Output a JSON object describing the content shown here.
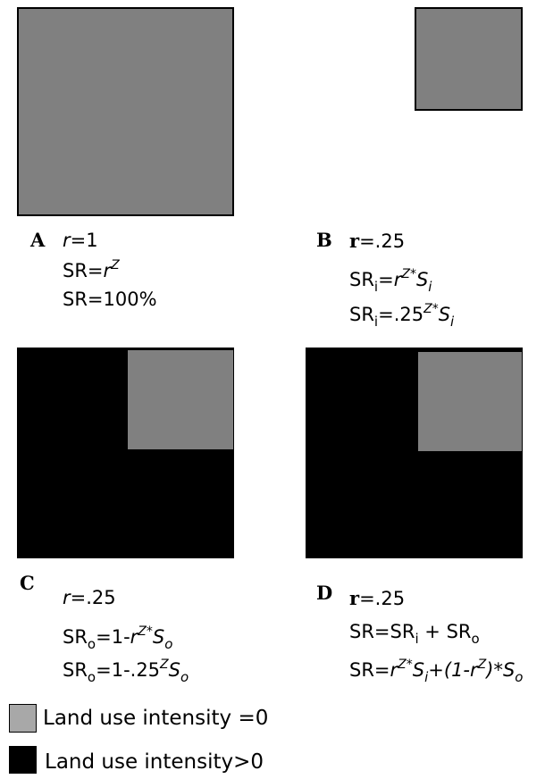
{
  "colors": {
    "intensity_zero": "#808080",
    "intensity_positive": "#000000"
  },
  "panels": {
    "A": {
      "letter": "A",
      "r_var": "r",
      "r_eq": "=1",
      "sr_pre": "SR=",
      "sr_base": "r",
      "sr_exp": "Z",
      "sr_pct": "SR=100%"
    },
    "B": {
      "letter": "B",
      "r_var": "r",
      "r_eq": "=.25",
      "l1_sr": "SR",
      "l1_sub": "i",
      "l1_eq": "=",
      "l1_base": "r",
      "l1_exp": "Z",
      "l1_star": "*",
      "l1_s": "S",
      "l1_ssub": "i",
      "l2_sr": "SR",
      "l2_sub": "i",
      "l2_eq": "=.25",
      "l2_exp": "Z",
      "l2_star": "*",
      "l2_s": "S",
      "l2_ssub": "i"
    },
    "C": {
      "letter": "C",
      "r_var": "r",
      "r_eq": "=.25",
      "l1_sr": "SR",
      "l1_sub": "o",
      "l1_eq": "=1-",
      "l1_base": "r",
      "l1_exp": "Z",
      "l1_star": "*",
      "l1_s": "S",
      "l1_ssub": "o",
      "l2_sr": "SR",
      "l2_sub": "o",
      "l2_eq": "=1-.25",
      "l2_exp": "Z",
      "l2_s": "S",
      "l2_ssub": "o"
    },
    "D": {
      "letter": "D",
      "r_var": "r",
      "r_eq": "=.25",
      "l1_pre": "SR=SR",
      "l1_sub_i": "i",
      "l1_mid": " + SR",
      "l1_sub_o": "o",
      "l2_pre": "SR=",
      "l2_base": "r",
      "l2_exp": "Z",
      "l2_star": "*",
      "l2_s": "S",
      "l2_ssub": "i",
      "l2_paren": "+(1-",
      "l2_base2": "r",
      "l2_exp2": "Z",
      "l2_close": ")*",
      "l2_s2": "S",
      "l2_ssub2": "o"
    }
  },
  "legend": {
    "zero_label": "Land use intensity =0",
    "positive_label": "Land use intensity>0"
  }
}
